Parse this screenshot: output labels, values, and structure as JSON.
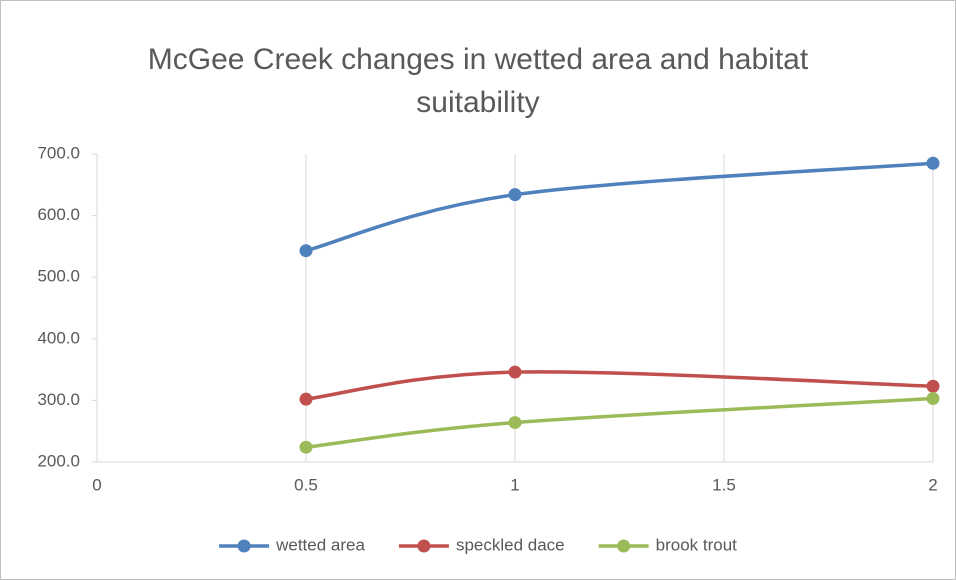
{
  "chart_data": {
    "type": "line",
    "title": "McGee Creek changes in wetted area and habitat suitability",
    "x": [
      0.5,
      1,
      2
    ],
    "series": [
      {
        "name": "wetted area",
        "color": "#4f81bd",
        "values": [
          543,
          634,
          685
        ]
      },
      {
        "name": "speckled dace",
        "color": "#c0504d",
        "values": [
          302,
          346,
          323
        ]
      },
      {
        "name": "brook trout",
        "color": "#9bbb59",
        "values": [
          224,
          264,
          303
        ]
      }
    ],
    "xlim": [
      0,
      2
    ],
    "xticks": [
      0,
      0.5,
      1,
      1.5,
      2
    ],
    "ylim": [
      200,
      700
    ],
    "yticks": [
      {
        "value": 200,
        "label": "200.0"
      },
      {
        "value": 300,
        "label": "300.0"
      },
      {
        "value": 400,
        "label": "400.0"
      },
      {
        "value": 500,
        "label": "500.0"
      },
      {
        "value": 600,
        "label": "600.0"
      },
      {
        "value": 700,
        "label": "700.0"
      }
    ],
    "smooth": true,
    "xgrid": true,
    "legend": "bottom"
  }
}
